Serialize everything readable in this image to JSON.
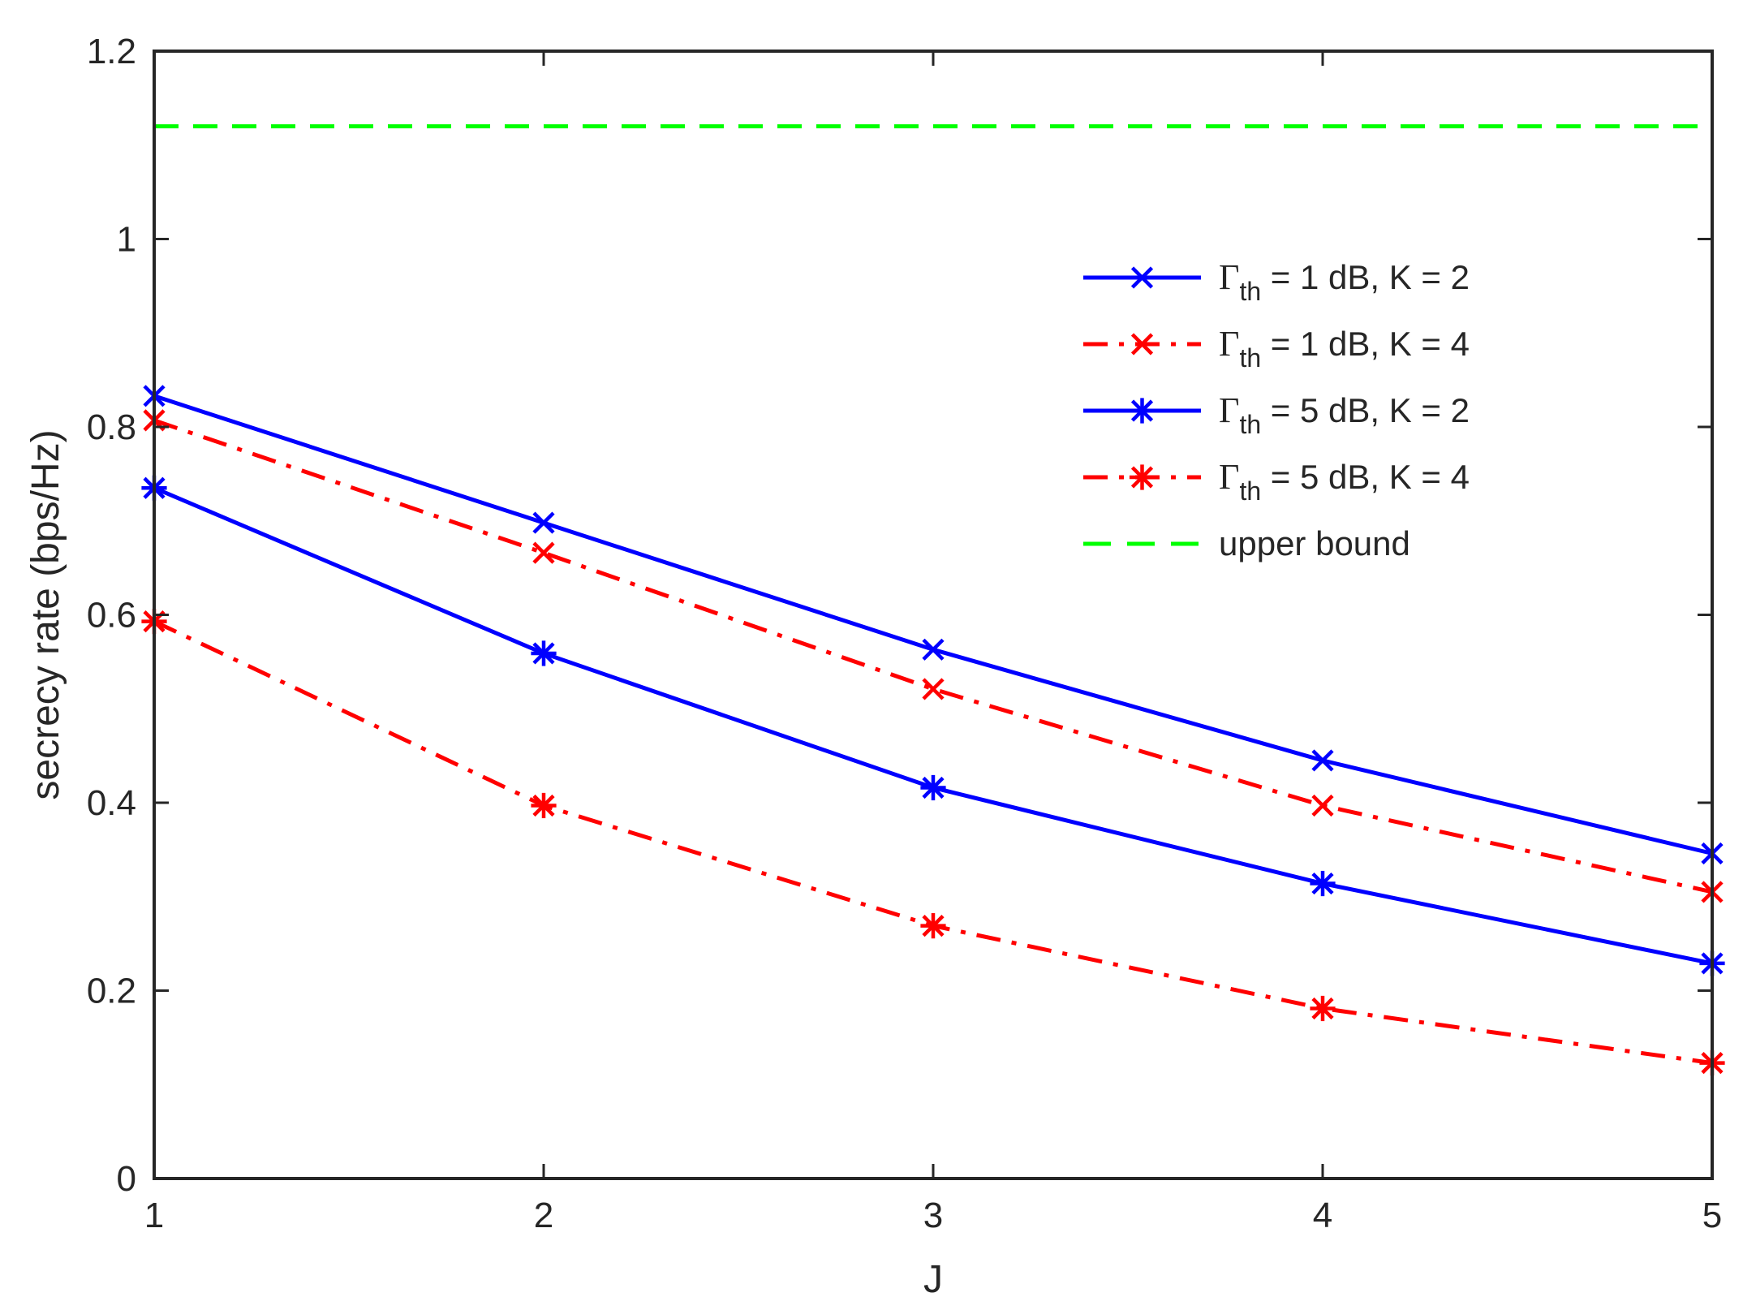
{
  "chart_data": {
    "type": "line",
    "xlabel": "J",
    "ylabel": "secrecy rate (bps/Hz)",
    "xlim": [
      1,
      5
    ],
    "ylim": [
      0,
      1.2
    ],
    "xticks": [
      1,
      2,
      3,
      4,
      5
    ],
    "xtick_labels": [
      "1",
      "2",
      "3",
      "4",
      "5"
    ],
    "yticks": [
      0,
      0.2,
      0.4,
      0.6,
      0.8,
      1,
      1.2
    ],
    "ytick_labels": [
      "0",
      "0.2",
      "0.4",
      "0.6",
      "0.8",
      "1",
      "1.2"
    ],
    "grid": false,
    "legend_position": "top-right",
    "x": [
      1,
      2,
      3,
      4,
      5
    ],
    "series": [
      {
        "name": "Γth = 1 dB, K = 2",
        "legend_symbol": "Γ",
        "legend_subscript": "th",
        "legend_text": " = 1 dB, K = 2",
        "values": [
          0.833,
          0.698,
          0.563,
          0.445,
          0.346
        ],
        "color": "#0000ff",
        "line_style": "solid",
        "marker": "x"
      },
      {
        "name": "Γth = 1 dB, K = 4",
        "legend_symbol": "Γ",
        "legend_subscript": "th",
        "legend_text": " = 1 dB, K = 4",
        "values": [
          0.807,
          0.666,
          0.521,
          0.397,
          0.305
        ],
        "color": "#ff0000",
        "line_style": "dashdot",
        "marker": "x"
      },
      {
        "name": "Γth = 5 dB, K = 2",
        "legend_symbol": "Γ",
        "legend_subscript": "th",
        "legend_text": " = 5 dB, K = 2",
        "values": [
          0.735,
          0.559,
          0.416,
          0.314,
          0.229
        ],
        "color": "#0000ff",
        "line_style": "solid",
        "marker": "asterisk"
      },
      {
        "name": "Γth = 5 dB, K = 4",
        "legend_symbol": "Γ",
        "legend_subscript": "th",
        "legend_text": " = 5 dB, K = 4",
        "values": [
          0.593,
          0.397,
          0.269,
          0.181,
          0.123
        ],
        "color": "#ff0000",
        "line_style": "dashdot",
        "marker": "asterisk"
      },
      {
        "name": "upper bound",
        "legend_symbol": "",
        "legend_subscript": "",
        "legend_text": "upper bound",
        "values": [
          1.12,
          1.12,
          1.12,
          1.12,
          1.12
        ],
        "color": "#00ff00",
        "line_style": "dashed",
        "marker": "none"
      }
    ]
  }
}
